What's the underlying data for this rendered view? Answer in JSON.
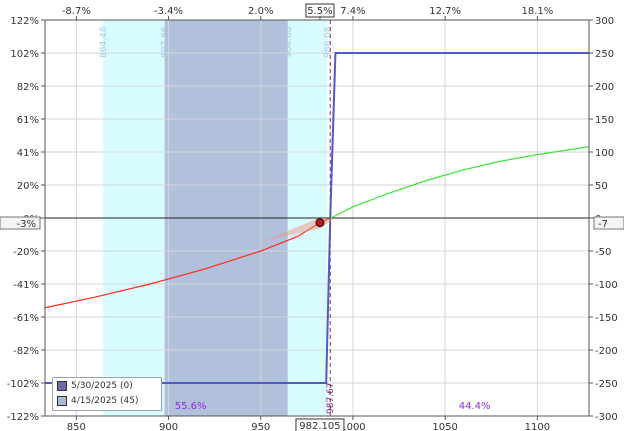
{
  "chart_data": {
    "type": "line",
    "x_axis_bottom": {
      "ticks": [
        850,
        900,
        950,
        1000,
        1050,
        1100
      ],
      "range": [
        833,
        1128
      ]
    },
    "x_axis_top": {
      "ticks": [
        "-8.7%",
        "-3.4%",
        "2.0%",
        "5.5%",
        "7.4%",
        "12.7%",
        "18.1%"
      ],
      "tick_positions": [
        850,
        900,
        950,
        982.105,
        1000,
        1050,
        1100
      ],
      "highlight": "5.5%"
    },
    "y_axis_left": {
      "ticks": [
        "122%",
        "102%",
        "82%",
        "61%",
        "41%",
        "20%",
        "0%",
        "-20%",
        "-41%",
        "-61%",
        "-82%",
        "-102%",
        "-122%"
      ]
    },
    "y_axis_right": {
      "ticks": [
        300,
        250,
        200,
        150,
        100,
        50,
        0,
        -50,
        -100,
        -150,
        -200,
        -250,
        -300
      ],
      "range": [
        -300,
        300
      ]
    },
    "left_marker": "-3%",
    "right_marker": "-7",
    "current_price_label": "982.105",
    "vertical_labels": [
      {
        "x": 864.48,
        "label": "864.48",
        "color": "#a6c8e0"
      },
      {
        "x": 897.86,
        "label": "897.86",
        "color": "#a6c8e0"
      },
      {
        "x": 964.68,
        "label": "964.68",
        "color": "#a6c8e0"
      },
      {
        "x": 986.08,
        "label": "986.08",
        "color": "#a6c8e0"
      },
      {
        "x": 987.67,
        "label": "987.67",
        "color": "#7b2a7b"
      }
    ],
    "bands": [
      {
        "from": 864.48,
        "to": 897.86,
        "color": "#d8fbff"
      },
      {
        "from": 897.86,
        "to": 964.68,
        "color": "#b1c1dc"
      },
      {
        "from": 964.68,
        "to": 986.08,
        "color": "#d8fbff"
      }
    ],
    "probability_labels": [
      {
        "x": 912,
        "label": "55.6%"
      },
      {
        "x": 1066,
        "label": "44.4%"
      }
    ],
    "series": [
      {
        "name": "5/30/2025 (0)",
        "color": "#5159c2",
        "swatch": "#6e6aa7",
        "points": [
          [
            833,
            -250
          ],
          [
            985.5,
            -250
          ],
          [
            987.67,
            0
          ],
          [
            990.5,
            250
          ],
          [
            1128,
            250
          ]
        ]
      },
      {
        "name": "4/15/2025 (45)",
        "color": "#ff2a1a",
        "swatch": "#a9b8d8",
        "points": [
          [
            833,
            -136
          ],
          [
            860,
            -120
          ],
          [
            890,
            -100
          ],
          [
            920,
            -77
          ],
          [
            950,
            -50
          ],
          [
            970,
            -28
          ],
          [
            982.105,
            -7
          ],
          [
            988,
            0
          ],
          [
            1000,
            17
          ],
          [
            1020,
            38
          ],
          [
            1040,
            57
          ],
          [
            1060,
            73
          ],
          [
            1080,
            86
          ],
          [
            1100,
            96
          ],
          [
            1128,
            108
          ]
        ]
      }
    ],
    "current_point": {
      "x": 982.105,
      "y": -7
    }
  },
  "legend": [
    {
      "label": "5/30/2025 (0)",
      "color": "#6e6aa7"
    },
    {
      "label": "4/15/2025 (45)",
      "color": "#a9b8d8"
    }
  ]
}
